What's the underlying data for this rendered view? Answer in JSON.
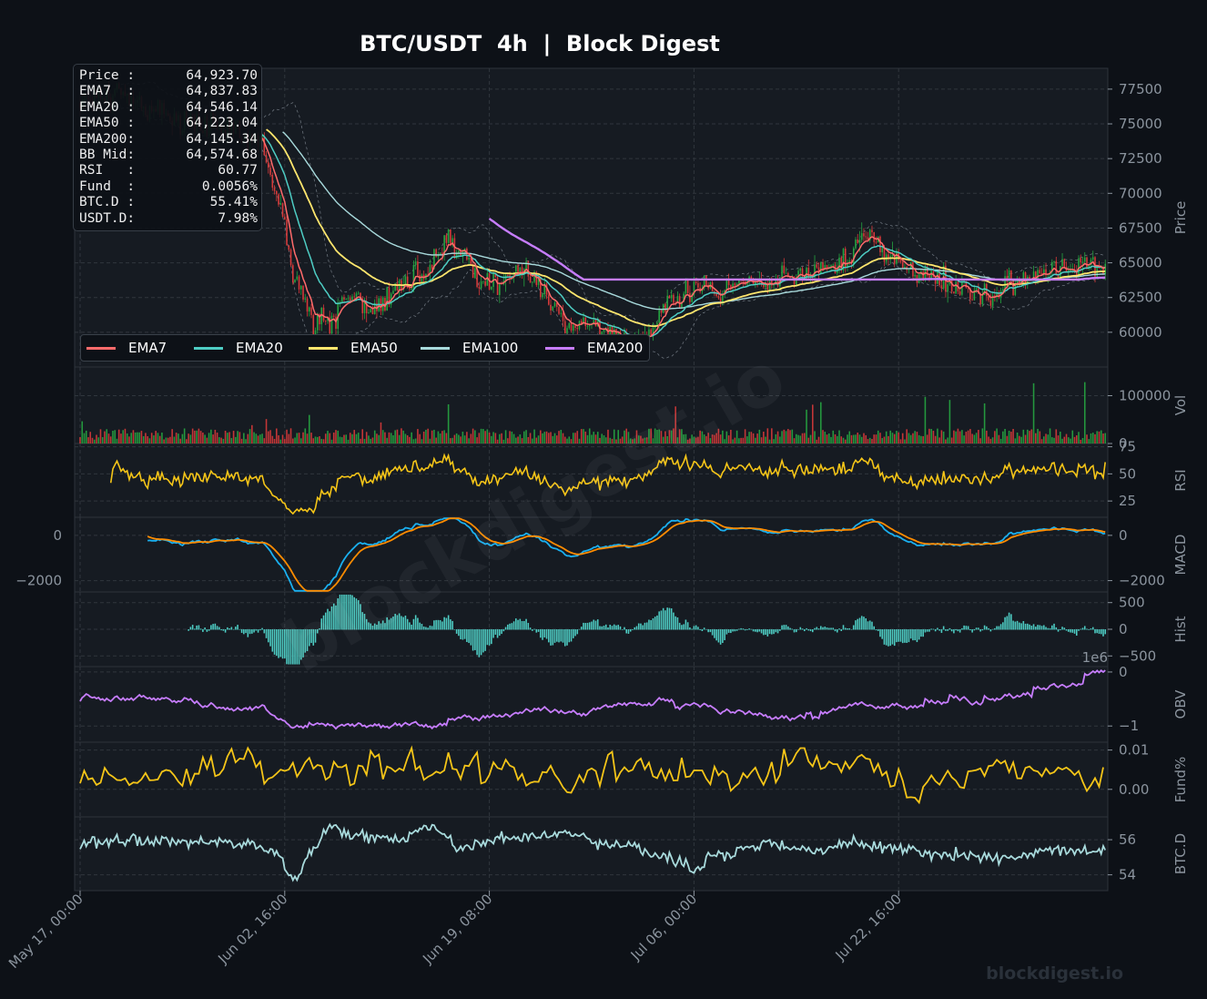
{
  "title": "BTC/USDT  4h  |  Block Digest",
  "footer_watermark": "blockdigest.io",
  "background_watermark": "blockdigest.io",
  "colors": {
    "background": "#0d1117",
    "panel": "#161b22",
    "grid": "#30363d",
    "up": "#26a641",
    "down": "#d73a3a",
    "ema7": "#ff6b6b",
    "ema20": "#4ecdc4",
    "ema50": "#ffe66d",
    "ema100": "#a8dadc",
    "ema200": "#c77dff",
    "rsi": "#f5c518",
    "macd": "#1ab0f0",
    "signal": "#ff8c00",
    "hist": "#4ecdc4",
    "obv": "#c77dff",
    "funding": "#f5c518",
    "btcd": "#a8dadc"
  },
  "stats": [
    {
      "key": "Price :",
      "value": "64,923.70"
    },
    {
      "key": "EMA7  :",
      "value": "64,837.83"
    },
    {
      "key": "EMA20 :",
      "value": "64,546.14"
    },
    {
      "key": "EMA50 :",
      "value": "64,223.04"
    },
    {
      "key": "EMA200:",
      "value": "64,145.34"
    },
    {
      "key": "BB Mid:",
      "value": "64,574.68"
    },
    {
      "key": "RSI   :",
      "value": "60.77"
    },
    {
      "key": "Fund  :",
      "value": "0.0056%"
    },
    {
      "key": "BTC.D :",
      "value": "55.41%"
    },
    {
      "key": "USDT.D:",
      "value": "7.98%"
    }
  ],
  "legend": [
    {
      "label": "EMA7",
      "color": "#ff6b6b"
    },
    {
      "label": "EMA20",
      "color": "#4ecdc4"
    },
    {
      "label": "EMA50",
      "color": "#ffe66d"
    },
    {
      "label": "EMA100",
      "color": "#a8dadc"
    },
    {
      "label": "EMA200",
      "color": "#c77dff"
    }
  ],
  "chart_data": {
    "type": "line",
    "x_tick_labels": [
      "May 17, 00:00",
      "Jun 02, 16:00",
      "Jun 19, 08:00",
      "Jul 06, 00:00",
      "Jul 22, 16:00"
    ],
    "x_range_days": [
      0,
      83.5
    ],
    "panels": [
      {
        "id": "price",
        "ylabel": "Price",
        "ylim": [
          57500,
          79000
        ],
        "ticks": [
          60000,
          62500,
          65000,
          67500,
          70000,
          72500,
          75000,
          77500
        ],
        "tick_labels": [
          "60000",
          "62500",
          "65000",
          "67500",
          "70000",
          "72500",
          "75000",
          "77500"
        ],
        "grid": true,
        "candles_knots": [
          [
            0,
            76500
          ],
          [
            3,
            77300
          ],
          [
            6,
            76000
          ],
          [
            9,
            75100
          ],
          [
            12,
            74800
          ],
          [
            14.5,
            74000
          ],
          [
            16,
            70000
          ],
          [
            17.5,
            64000
          ],
          [
            19,
            61000
          ],
          [
            20.5,
            60800
          ],
          [
            22,
            62600
          ],
          [
            24,
            61500
          ],
          [
            26,
            63000
          ],
          [
            28,
            64300
          ],
          [
            30,
            66500
          ],
          [
            31,
            65500
          ],
          [
            33,
            63500
          ],
          [
            35,
            64000
          ],
          [
            37,
            64000
          ],
          [
            38.5,
            62000
          ],
          [
            39.5,
            60200
          ],
          [
            41,
            60500
          ],
          [
            43,
            60000
          ],
          [
            45,
            59300
          ],
          [
            46.5,
            60500
          ],
          [
            48,
            62000
          ],
          [
            50,
            63200
          ],
          [
            52,
            62800
          ],
          [
            54,
            64000
          ],
          [
            56,
            63500
          ],
          [
            58,
            64200
          ],
          [
            60,
            64600
          ],
          [
            62,
            64800
          ],
          [
            64,
            66800
          ],
          [
            66,
            65500
          ],
          [
            68,
            64200
          ],
          [
            70,
            63900
          ],
          [
            72,
            62900
          ],
          [
            74,
            62700
          ],
          [
            76,
            63400
          ],
          [
            78,
            64200
          ],
          [
            80,
            64500
          ],
          [
            82,
            64800
          ],
          [
            83.5,
            64923.7
          ]
        ],
        "series": [
          {
            "name": "EMA7",
            "key": "ema7"
          },
          {
            "name": "EMA20",
            "key": "ema20"
          },
          {
            "name": "EMA50",
            "key": "ema50"
          },
          {
            "name": "EMA100",
            "key": "ema100"
          },
          {
            "name": "EMA200",
            "key": "ema200",
            "x_start": 33.3
          }
        ]
      },
      {
        "id": "volume",
        "ylabel": "Vol",
        "ylim": [
          0,
          160000
        ],
        "ticks": [
          0,
          100000
        ],
        "tick_labels": [
          "0",
          "100000"
        ],
        "grid": true,
        "typical_volume": 22000
      },
      {
        "id": "rsi",
        "ylabel": "RSI",
        "ylim": [
          10,
          78
        ],
        "ticks": [
          25,
          50,
          75
        ],
        "tick_labels": [
          "25",
          "50",
          "75"
        ],
        "grid": true,
        "last": 60.77
      },
      {
        "id": "macd",
        "ylabel": "MACD",
        "ylim": [
          -2500,
          800
        ],
        "ticks": [
          -2000,
          0
        ],
        "tick_labels": [
          "−2000",
          "0"
        ],
        "grid": true,
        "series": [
          {
            "name": "MACD"
          },
          {
            "name": "Signal"
          }
        ]
      },
      {
        "id": "hist",
        "ylabel": "Hist",
        "ylim": [
          -700,
          700
        ],
        "ticks": [
          -500,
          0,
          500
        ],
        "tick_labels": [
          "−500",
          "0",
          "500"
        ],
        "grid": true
      },
      {
        "id": "obv",
        "ylabel": "OBV",
        "ylim": [
          -1.3,
          0.1
        ],
        "ticks": [
          -1,
          0
        ],
        "tick_labels": [
          "−1",
          "0"
        ],
        "offset_label": "1e6",
        "grid": true
      },
      {
        "id": "funding",
        "ylabel": "Fund%",
        "ylim": [
          -0.007,
          0.012
        ],
        "ticks": [
          0.0,
          0.01
        ],
        "tick_labels": [
          "0.00",
          "0.01"
        ],
        "grid": true,
        "last": 0.0056
      },
      {
        "id": "btcd",
        "ylabel": "BTC.D",
        "ylim": [
          53.1,
          57.3
        ],
        "ticks": [
          54,
          56
        ],
        "tick_labels": [
          "54",
          "56"
        ],
        "grid": true,
        "last": 55.41
      }
    ]
  }
}
